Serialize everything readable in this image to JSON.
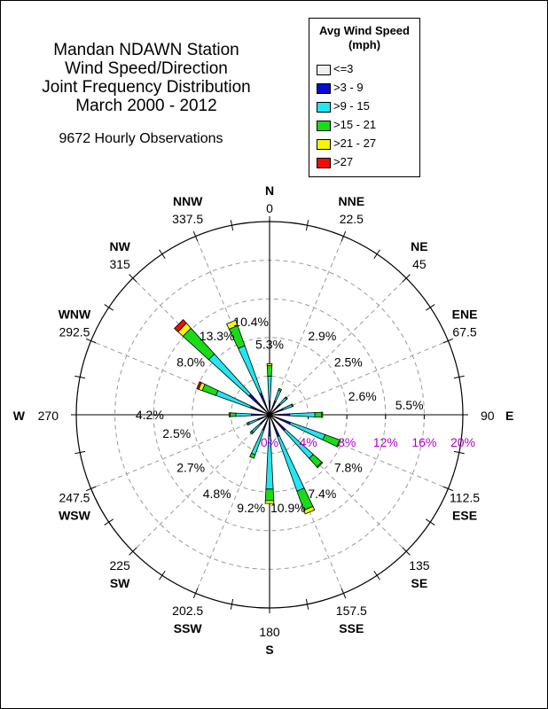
{
  "title": {
    "line1": "Mandan NDAWN Station",
    "line2": "Wind Speed/Direction",
    "line3": "Joint Frequency Distribution",
    "line4": "March 2000 - 2012",
    "subtitle": "9672 Hourly Observations"
  },
  "legend": {
    "title_line1": "Avg Wind Speed",
    "title_line2": "(mph)",
    "entries": [
      {
        "label": "<=3",
        "color": "#f0f0f0"
      },
      {
        "label": ">3 - 9",
        "color": "#0a0ad2"
      },
      {
        "label": ">9 - 15",
        "color": "#22e6f0"
      },
      {
        "label": ">15 - 21",
        "color": "#18dc18"
      },
      {
        "label": ">21 - 27",
        "color": "#f5f50a"
      },
      {
        "label": ">27",
        "color": "#f50a0a"
      }
    ]
  },
  "chart_data": {
    "type": "wind-rose",
    "radial_axis": {
      "max_percent": 20,
      "ring_values": [
        4,
        8,
        12,
        16,
        20
      ],
      "tick_labels": [
        "0%",
        "4%",
        "8%",
        "12%",
        "16%",
        "20%"
      ],
      "tick_label_color": "#b000c8"
    },
    "compass": [
      {
        "dir": "N",
        "deg_label": "0",
        "deg": 0
      },
      {
        "dir": "NNE",
        "deg_label": "22.5",
        "deg": 22.5
      },
      {
        "dir": "NE",
        "deg_label": "45",
        "deg": 45
      },
      {
        "dir": "ENE",
        "deg_label": "67.5",
        "deg": 67.5
      },
      {
        "dir": "E",
        "deg_label": "90",
        "deg": 90
      },
      {
        "dir": "ESE",
        "deg_label": "112.5",
        "deg": 112.5
      },
      {
        "dir": "SE",
        "deg_label": "135",
        "deg": 135
      },
      {
        "dir": "SSE",
        "deg_label": "157.5",
        "deg": 157.5
      },
      {
        "dir": "S",
        "deg_label": "180",
        "deg": 180
      },
      {
        "dir": "SSW",
        "deg_label": "202.5",
        "deg": 202.5
      },
      {
        "dir": "SW",
        "deg_label": "225",
        "deg": 225
      },
      {
        "dir": "WSW",
        "deg_label": "247.5",
        "deg": 247.5
      },
      {
        "dir": "W",
        "deg_label": "270",
        "deg": 270
      },
      {
        "dir": "WNW",
        "deg_label": "292.5",
        "deg": 292.5
      },
      {
        "dir": "NW",
        "deg_label": "315",
        "deg": 315
      },
      {
        "dir": "NNW",
        "deg_label": "337.5",
        "deg": 337.5
      }
    ],
    "sector_percent_labels": [
      {
        "dir": "N",
        "deg": 0,
        "label": "5.3%"
      },
      {
        "dir": "NNE",
        "deg": 22.5,
        "label": "2.9%"
      },
      {
        "dir": "NE",
        "deg": 45,
        "label": "2.5%"
      },
      {
        "dir": "ENE",
        "deg": 67.5,
        "label": "2.6%"
      },
      {
        "dir": "E",
        "deg": 90,
        "label": "5.5%"
      },
      {
        "dir": "ESE",
        "deg": 112.5,
        "label": "7.8%"
      },
      {
        "dir": "SE",
        "deg": 135,
        "label": "7.4%"
      },
      {
        "dir": "SSE",
        "deg": 157.5,
        "label": "10.9%"
      },
      {
        "dir": "S",
        "deg": 180,
        "label": "9.2%"
      },
      {
        "dir": "SSW",
        "deg": 202.5,
        "label": "4.8%"
      },
      {
        "dir": "SW",
        "deg": 225,
        "label": "2.7%"
      },
      {
        "dir": "WSW",
        "deg": 247.5,
        "label": "2.5%"
      },
      {
        "dir": "W",
        "deg": 270,
        "label": "4.2%"
      },
      {
        "dir": "WNW",
        "deg": 292.5,
        "label": "8.0%"
      },
      {
        "dir": "NW",
        "deg": 315,
        "label": "13.3%"
      },
      {
        "dir": "NNW",
        "deg": 337.5,
        "label": "10.4%"
      }
    ],
    "speed_bins": [
      "<=3",
      ">3 - 9",
      ">9 - 15",
      ">15 - 21",
      ">21 - 27",
      ">27"
    ],
    "sectors": [
      {
        "dir": "N",
        "deg": 0,
        "values": [
          0.1,
          1.3,
          2.6,
          1.1,
          0.2,
          0.0
        ]
      },
      {
        "dir": "NNE",
        "deg": 22.5,
        "values": [
          0.1,
          1.4,
          1.2,
          0.2,
          0.0,
          0.0
        ]
      },
      {
        "dir": "NE",
        "deg": 45,
        "values": [
          0.1,
          1.4,
          0.9,
          0.1,
          0.0,
          0.0
        ]
      },
      {
        "dir": "ENE",
        "deg": 67.5,
        "values": [
          0.1,
          1.4,
          1.0,
          0.1,
          0.0,
          0.0
        ]
      },
      {
        "dir": "E",
        "deg": 90,
        "values": [
          0.1,
          2.0,
          2.6,
          0.7,
          0.1,
          0.0
        ]
      },
      {
        "dir": "ESE",
        "deg": 112.5,
        "values": [
          0.1,
          2.2,
          3.8,
          1.6,
          0.1,
          0.0
        ]
      },
      {
        "dir": "SE",
        "deg": 135,
        "values": [
          0.1,
          2.1,
          3.9,
          1.2,
          0.1,
          0.0
        ]
      },
      {
        "dir": "SSE",
        "deg": 157.5,
        "values": [
          0.1,
          2.3,
          6.0,
          2.1,
          0.4,
          0.0
        ]
      },
      {
        "dir": "S",
        "deg": 180,
        "values": [
          0.1,
          2.1,
          5.5,
          1.2,
          0.3,
          0.0
        ]
      },
      {
        "dir": "SSW",
        "deg": 202.5,
        "values": [
          0.1,
          1.6,
          2.7,
          0.4,
          0.0,
          0.0
        ]
      },
      {
        "dir": "SW",
        "deg": 225,
        "values": [
          0.1,
          1.2,
          1.2,
          0.2,
          0.0,
          0.0
        ]
      },
      {
        "dir": "WSW",
        "deg": 247.5,
        "values": [
          0.1,
          1.2,
          1.0,
          0.2,
          0.0,
          0.0
        ]
      },
      {
        "dir": "W",
        "deg": 270,
        "values": [
          0.1,
          1.8,
          1.6,
          0.6,
          0.1,
          0.0
        ]
      },
      {
        "dir": "WNW",
        "deg": 292.5,
        "values": [
          0.1,
          2.0,
          3.8,
          1.5,
          0.4,
          0.2
        ]
      },
      {
        "dir": "NW",
        "deg": 315,
        "values": [
          0.1,
          2.8,
          5.6,
          3.6,
          0.7,
          0.5
        ]
      },
      {
        "dir": "NNW",
        "deg": 337.5,
        "values": [
          0.1,
          2.3,
          5.2,
          2.2,
          0.6,
          0.0
        ]
      }
    ]
  }
}
